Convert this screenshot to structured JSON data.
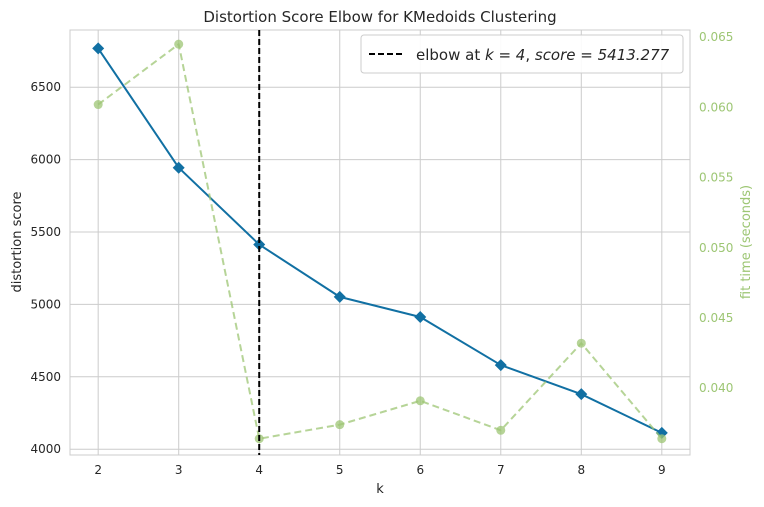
{
  "chart_data": {
    "type": "line",
    "title": "Distortion Score Elbow for KMedoids Clustering",
    "xlabel": "k",
    "ylabel": "distortion score",
    "y2label": "fit time (seconds)",
    "x": [
      2,
      3,
      4,
      5,
      6,
      7,
      8,
      9
    ],
    "xlim": [
      1.65,
      9.35
    ],
    "ylim": [
      3960,
      6895
    ],
    "y2lim": [
      0.03524,
      0.06551
    ],
    "xticks": [
      "2",
      "3",
      "4",
      "5",
      "6",
      "7",
      "8",
      "9"
    ],
    "yticks": [
      "4000",
      "4500",
      "5000",
      "5500",
      "6000",
      "6500"
    ],
    "y2ticks": [
      "0.040",
      "0.045",
      "0.050",
      "0.055",
      "0.060",
      "0.065"
    ],
    "series": [
      {
        "axis": "left",
        "color": "#1170a3",
        "style": "solid",
        "marker": "diamond",
        "values": [
          6768,
          5944,
          5413.277,
          5052,
          4913,
          4581,
          4380,
          4113
        ]
      },
      {
        "axis": "right",
        "color": "#9dc674",
        "style": "dashed",
        "marker": "circle",
        "values": [
          0.0602,
          0.0645,
          0.0364,
          0.0374,
          0.0391,
          0.037,
          0.0432,
          0.0364
        ]
      }
    ],
    "elbow": {
      "k": 4,
      "score": "5413.277"
    },
    "legend": {
      "position": "top-right",
      "prefix": "elbow at ",
      "k_part": "k = 4",
      "sep": ", ",
      "score_part": "score = 5413.277"
    },
    "grid": true
  }
}
